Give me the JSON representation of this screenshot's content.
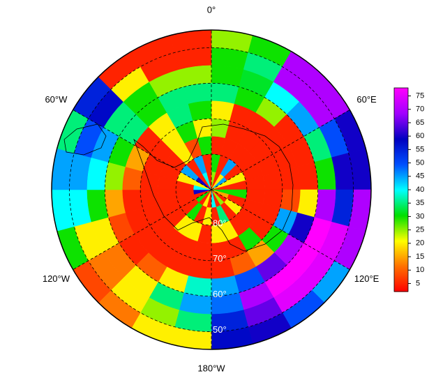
{
  "map": {
    "lon_labels": [
      {
        "value": 0,
        "label": "0°"
      },
      {
        "value": 60,
        "label": "60°E"
      },
      {
        "value": 120,
        "label": "120°E"
      },
      {
        "value": 180,
        "label": "180°W"
      },
      {
        "value": 240,
        "label": "120°W"
      },
      {
        "value": 300,
        "label": "60°W"
      }
    ],
    "lat_labels": [
      {
        "value": 80,
        "label": "80°"
      },
      {
        "value": 70,
        "label": "70°"
      },
      {
        "value": 60,
        "label": "60°"
      },
      {
        "value": 50,
        "label": "50°"
      }
    ],
    "lat_edges": [
      45,
      50,
      55,
      60,
      65,
      70,
      75,
      80,
      85,
      90
    ],
    "lon_edges": [
      0,
      15,
      30,
      45,
      60,
      75,
      90,
      105,
      120,
      135,
      150,
      165,
      180,
      195,
      210,
      225,
      240,
      255,
      270,
      285,
      300,
      315,
      330,
      345,
      360
    ],
    "values": [
      [
        25,
        30,
        70,
        70,
        60,
        60,
        70,
        70,
        45,
        50,
        60,
        58,
        20,
        20,
        12,
        8,
        30,
        40,
        45,
        35,
        55,
        5,
        5,
        5
      ],
      [
        30,
        35,
        70,
        70,
        50,
        60,
        55,
        75,
        75,
        75,
        65,
        55,
        35,
        25,
        20,
        12,
        20,
        40,
        45,
        50,
        58,
        20,
        5,
        5
      ],
      [
        30,
        32,
        40,
        45,
        35,
        30,
        70,
        78,
        78,
        78,
        70,
        48,
        45,
        35,
        20,
        12,
        20,
        30,
        40,
        45,
        35,
        30,
        25,
        25
      ],
      [
        35,
        30,
        25,
        5,
        5,
        5,
        20,
        60,
        70,
        65,
        50,
        45,
        38,
        20,
        10,
        5,
        8,
        15,
        25,
        30,
        35,
        30,
        35,
        35
      ],
      [
        20,
        5,
        5,
        5,
        5,
        5,
        8,
        45,
        30,
        15,
        10,
        5,
        5,
        5,
        5,
        5,
        5,
        5,
        10,
        15,
        5,
        20,
        35,
        30
      ],
      [
        25,
        5,
        5,
        5,
        5,
        5,
        5,
        5,
        5,
        30,
        5,
        5,
        5,
        5,
        5,
        5,
        5,
        5,
        5,
        5,
        5,
        20,
        30,
        20
      ],
      [
        5,
        5,
        5,
        5,
        5,
        5,
        5,
        5,
        5,
        5,
        20,
        20,
        5,
        20,
        20,
        5,
        5,
        5,
        5,
        5,
        5,
        20,
        8,
        30
      ],
      [
        30,
        5,
        45,
        5,
        20,
        5,
        30,
        5,
        20,
        5,
        35,
        5,
        20,
        5,
        30,
        5,
        5,
        5,
        5,
        20,
        45,
        5,
        45,
        5
      ],
      [
        25,
        5,
        20,
        45,
        20,
        5,
        30,
        15,
        5,
        25,
        5,
        40,
        5,
        20,
        5,
        30,
        5,
        60,
        40,
        20,
        60,
        5,
        40,
        5
      ]
    ],
    "clim": [
      2,
      78
    ],
    "colormap": [
      "#ff0000",
      "#ff7000",
      "#ffff00",
      "#00e000",
      "#00ffff",
      "#0050ff",
      "#0000c0",
      "#a000ff",
      "#ff00ff"
    ],
    "colorbar_ticks": [
      5,
      10,
      15,
      20,
      25,
      30,
      35,
      40,
      45,
      50,
      55,
      60,
      65,
      70,
      75
    ]
  }
}
